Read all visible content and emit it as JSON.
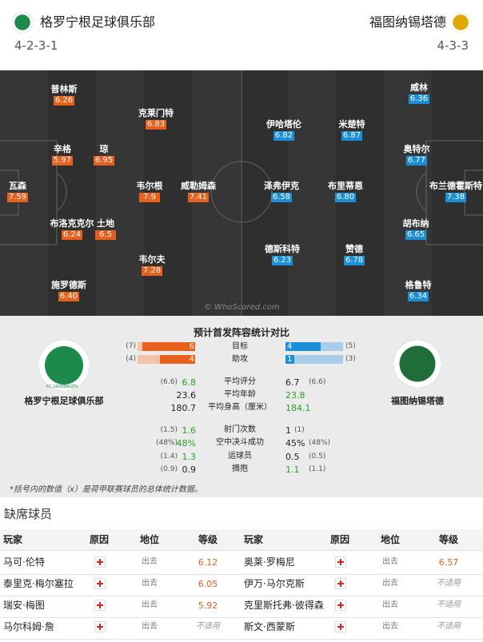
{
  "header": {
    "home": {
      "name": "格罗宁根足球俱乐部",
      "formation": "4-2-3-1",
      "logo_text": "FC GRONINGEN"
    },
    "away": {
      "name": "福图纳锡塔德",
      "formation": "4-3-3"
    }
  },
  "pitch": {
    "home_players": [
      {
        "name": "普林斯",
        "rating": "6.26"
      },
      {
        "name": "克莱门特",
        "rating": "6.83"
      },
      {
        "name": "辛格",
        "rating": "5.97"
      },
      {
        "name": "琼",
        "rating": "6.95"
      },
      {
        "name": "瓦森",
        "rating": "7.59"
      },
      {
        "name": "韦尔根",
        "rating": "7.9"
      },
      {
        "name": "威勒姆森",
        "rating": "7.41"
      },
      {
        "name": "布洛克克尔",
        "rating": "6.24"
      },
      {
        "name": "土地",
        "rating": "6.5"
      },
      {
        "name": "韦尔夫",
        "rating": "7.28"
      },
      {
        "name": "施罗德斯",
        "rating": "6.40"
      }
    ],
    "away_players": [
      {
        "name": "威林",
        "rating": "6.36"
      },
      {
        "name": "伊哈塔伦",
        "rating": "6.82"
      },
      {
        "name": "米楚特",
        "rating": "6.87"
      },
      {
        "name": "奥特尔",
        "rating": "6.77"
      },
      {
        "name": "泽弗伊克",
        "rating": "6.58"
      },
      {
        "name": "布里蒂恩",
        "rating": "6.80"
      },
      {
        "name": "布兰德霍斯特",
        "rating": "7.38"
      },
      {
        "name": "胡布纳",
        "rating": "6.65"
      },
      {
        "name": "德斯科特",
        "rating": "6.23"
      },
      {
        "name": "赞德",
        "rating": "6.78"
      },
      {
        "name": "格鲁特",
        "rating": "6.34"
      }
    ],
    "watermark": "© WhoScored.com"
  },
  "comparison": {
    "title": "预计首发阵容统计对比",
    "home_name": "格罗宁根足球俱乐部",
    "away_name": "福图纳锡塔德",
    "bars": [
      {
        "label": "目标",
        "home": 6,
        "home_league": "(7)",
        "away": 4,
        "away_league": "(5)"
      },
      {
        "label": "助攻",
        "home": 4,
        "home_league": "(4)",
        "away": 1,
        "away_league": "(3)"
      }
    ],
    "stats": [
      {
        "label": "平均评分",
        "home": "6.8",
        "home_league": "(6.6)",
        "away": "6.7",
        "away_league": "(6.6)"
      },
      {
        "label": "平均年龄",
        "home": "23.6",
        "away": "23.8"
      },
      {
        "label": "平均身高（厘米）",
        "home": "180.7",
        "away": "184.1"
      },
      {
        "label": "射门次数",
        "home": "1.6",
        "home_league": "(1.5)",
        "away": "1",
        "away_league": "(1)"
      },
      {
        "label": "空中决斗成功",
        "home": "48%",
        "home_league": "(48%)",
        "away": "45%",
        "away_league": "(48%)"
      },
      {
        "label": "运球员",
        "home": "1.3",
        "home_league": "(1.4)",
        "away": "0.5",
        "away_league": "(0.5)"
      },
      {
        "label": "摘抱",
        "home": "0.9",
        "home_league": "(0.9)",
        "away": "1.1",
        "away_league": "(1.1)"
      }
    ],
    "note": "*括号内的数值（x）是荷甲联赛球员的总体统计数据。"
  },
  "absentees": {
    "title": "缺席球员",
    "columns": [
      "玩家",
      "原因",
      "地位",
      "等级"
    ],
    "home": [
      {
        "player": "马可·伦特",
        "status": "出去",
        "grade": "6.12"
      },
      {
        "player": "泰里克·梅尔塞拉",
        "status": "出去",
        "grade": "6.05"
      },
      {
        "player": "瑞安·梅图",
        "status": "出去",
        "grade": "5.92"
      },
      {
        "player": "马尔科姆·詹",
        "status": "出去",
        "grade": "不适用"
      }
    ],
    "away": [
      {
        "player": "奥莱·罗梅尼",
        "status": "出去",
        "grade": "6.57"
      },
      {
        "player": "伊万·马尔克斯",
        "status": "出去",
        "grade": "不适用"
      },
      {
        "player": "克里斯托弗·彼得森",
        "status": "出去",
        "grade": "不适用"
      },
      {
        "player": "斯文·西蒙斯",
        "status": "出去",
        "grade": "不适用"
      }
    ]
  }
}
